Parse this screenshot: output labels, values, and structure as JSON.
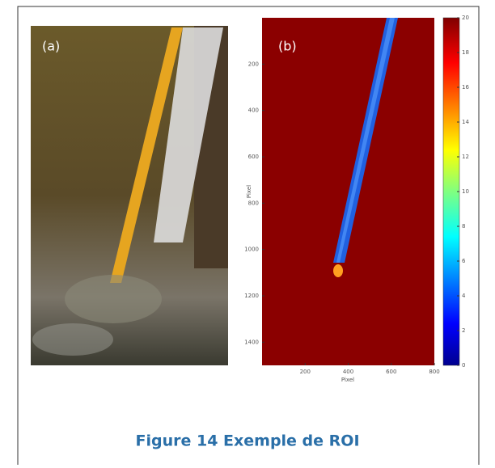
{
  "figure": {
    "panel_a": {
      "label": "(a)"
    },
    "panel_b": {
      "label": "(b)",
      "xlabel": "Pixel",
      "ylabel": "Pixel",
      "xlim": [
        0,
        800
      ],
      "ylim": [
        0,
        1500
      ],
      "xticks": [
        200,
        400,
        600,
        800
      ],
      "yticks": [
        200,
        400,
        600,
        800,
        1000,
        1200,
        1400
      ],
      "colorbar": {
        "lim": [
          0,
          20
        ],
        "ticks": [
          0,
          2,
          4,
          6,
          8,
          10,
          12,
          14,
          16,
          18,
          20
        ]
      }
    },
    "caption": "Figure 14 Exemple de ROI"
  }
}
